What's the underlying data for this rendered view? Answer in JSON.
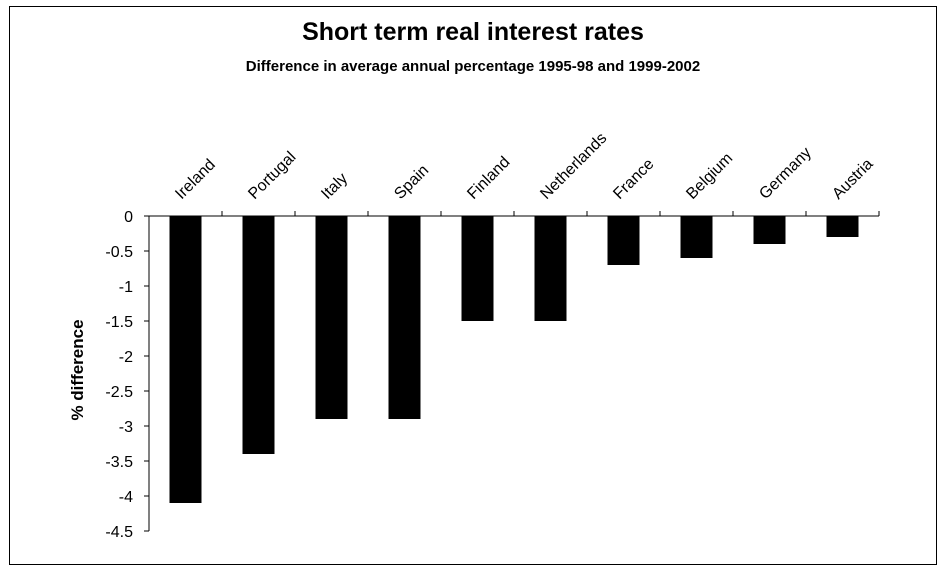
{
  "chart_data": {
    "type": "bar",
    "title": "Short term real interest rates",
    "subtitle": "Difference in average annual percentage 1995-98 and 1999-2002",
    "xlabel": "",
    "ylabel": "% difference",
    "categories": [
      "Ireland",
      "Portugal",
      "Italy",
      "Spain",
      "Finland",
      "Netherlands",
      "France",
      "Belgium",
      "Germany",
      "Austria"
    ],
    "values": [
      -4.1,
      -3.4,
      -2.9,
      -2.9,
      -1.5,
      -1.5,
      -0.7,
      -0.6,
      -0.4,
      -0.3
    ],
    "ylim": [
      -4.5,
      0
    ],
    "yticks": [
      0,
      -0.5,
      -1,
      -1.5,
      -2,
      -2.5,
      -3,
      -3.5,
      -4,
      -4.5
    ],
    "ytick_labels": [
      "0",
      "-0.5",
      "-1",
      "-1.5",
      "-2",
      "-2.5",
      "-3",
      "-3.5",
      "-4",
      "-4.5"
    ],
    "bar_color": "#000000",
    "grid": false,
    "category_labels_position": "top"
  }
}
